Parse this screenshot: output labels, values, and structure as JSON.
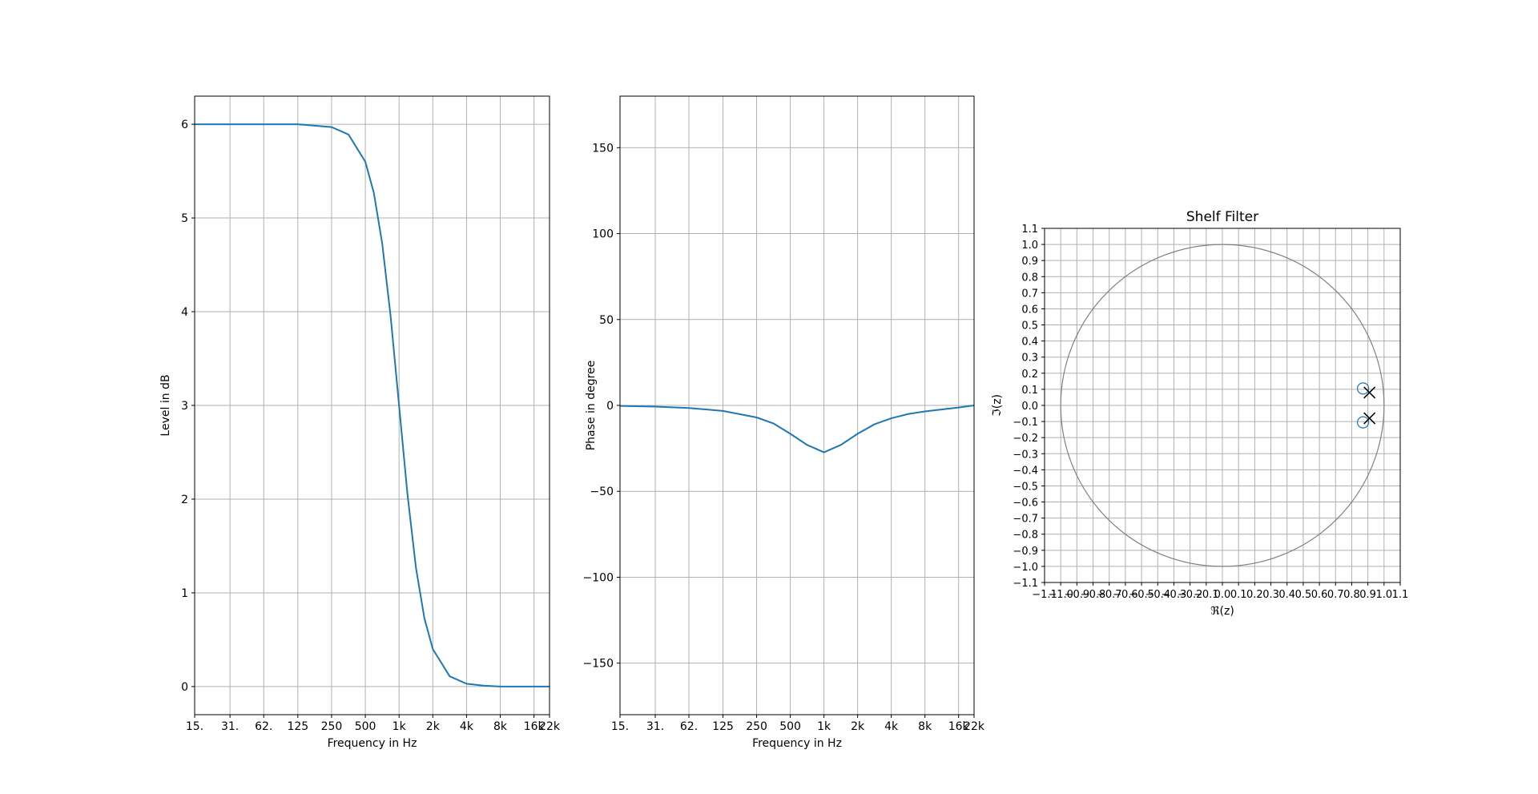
{
  "chart_data": [
    {
      "type": "line",
      "xlabel": "Frequency in Hz",
      "ylabel": "Level in dB",
      "xscale": "log",
      "grid": true,
      "color": "#1f77b4",
      "x": [
        15,
        31,
        62,
        125,
        250,
        354,
        500,
        595,
        707,
        841,
        1000,
        1189,
        1414,
        1682,
        2000,
        2828,
        4000,
        5657,
        8000,
        16000,
        22000
      ],
      "values": [
        6.0,
        6.0,
        6.0,
        6.0,
        5.97,
        5.89,
        5.6,
        5.27,
        4.73,
        3.95,
        3.0,
        2.05,
        1.27,
        0.73,
        0.4,
        0.11,
        0.03,
        0.01,
        0.0,
        0.0,
        0.0
      ],
      "xlim": [
        15,
        22000
      ],
      "ylim": [
        -0.3,
        6.3
      ],
      "xticks": [
        {
          "value": 15,
          "label": "15."
        },
        {
          "value": 31,
          "label": "31."
        },
        {
          "value": 62,
          "label": "62."
        },
        125,
        250,
        500,
        {
          "value": 1000,
          "label": "1k"
        },
        {
          "value": 2000,
          "label": "2k"
        },
        {
          "value": 4000,
          "label": "4k"
        },
        {
          "value": 8000,
          "label": "8k"
        },
        {
          "value": 16000,
          "label": "16k"
        },
        {
          "value": 22000,
          "label": "22k"
        }
      ],
      "yticks": [
        0,
        1,
        2,
        3,
        4,
        5,
        6
      ]
    },
    {
      "type": "line",
      "xlabel": "Frequency in Hz",
      "ylabel": "Phase in degree",
      "xscale": "log",
      "grid": true,
      "color": "#1f77b4",
      "x": [
        15,
        31,
        62,
        125,
        250,
        354,
        500,
        707,
        1000,
        1414,
        2000,
        2828,
        4000,
        5657,
        8000,
        16000,
        22000
      ],
      "values": [
        -0.3,
        -0.7,
        -1.5,
        -3.2,
        -7,
        -10.5,
        -16.5,
        -23,
        -27.3,
        -23,
        -16.5,
        -11,
        -7.5,
        -5,
        -3.5,
        -1.2,
        0
      ],
      "xlim": [
        15,
        22000
      ],
      "ylim": [
        -180,
        180
      ],
      "xticks": [
        {
          "value": 15,
          "label": "15."
        },
        {
          "value": 31,
          "label": "31."
        },
        {
          "value": 62,
          "label": "62."
        },
        125,
        250,
        500,
        {
          "value": 1000,
          "label": "1k"
        },
        {
          "value": 2000,
          "label": "2k"
        },
        {
          "value": 4000,
          "label": "4k"
        },
        {
          "value": 8000,
          "label": "8k"
        },
        {
          "value": 16000,
          "label": "16k"
        },
        {
          "value": 22000,
          "label": "22k"
        }
      ],
      "yticks": [
        {
          "value": -150,
          "label": "−150"
        },
        {
          "value": -100,
          "label": "−100"
        },
        {
          "value": -50,
          "label": "−50"
        },
        0,
        50,
        100,
        150
      ]
    },
    {
      "type": "scatter",
      "title": "Shelf Filter",
      "xlabel": "ℜ(z)",
      "ylabel": "ℑ(z)",
      "grid": true,
      "series": [
        {
          "marker": "circle",
          "color": "#1f77b4",
          "x": [
            0.87,
            0.87
          ],
          "y": [
            0.105,
            -0.105
          ]
        },
        {
          "marker": "cross",
          "color": "#000000",
          "x": [
            0.91,
            0.91
          ],
          "y": [
            0.08,
            -0.08
          ]
        }
      ],
      "xlim": [
        -1.1,
        1.1
      ],
      "ylim": [
        -1.1,
        1.1
      ],
      "xticks": [
        {
          "value": -1.1,
          "label": "−1.1"
        },
        {
          "value": -1.0,
          "label": "−1.0"
        },
        {
          "value": -0.9,
          "label": "−0.9"
        },
        {
          "value": -0.8,
          "label": "−0.8"
        },
        {
          "value": -0.7,
          "label": "−0.7"
        },
        {
          "value": -0.6,
          "label": "−0.6"
        },
        {
          "value": -0.5,
          "label": "−0.5"
        },
        {
          "value": -0.4,
          "label": "−0.4"
        },
        {
          "value": -0.3,
          "label": "−0.3"
        },
        {
          "value": -0.2,
          "label": "−0.2"
        },
        {
          "value": -0.1,
          "label": "−0.1"
        },
        {
          "value": 0,
          "label": "0.0"
        },
        0.1,
        0.2,
        0.3,
        0.4,
        0.5,
        0.6,
        0.7,
        0.8,
        0.9,
        {
          "value": 1,
          "label": "1.0"
        },
        1.1
      ],
      "yticks": [
        {
          "value": -1.1,
          "label": "−1.1"
        },
        {
          "value": -1.0,
          "label": "−1.0"
        },
        {
          "value": -0.9,
          "label": "−0.9"
        },
        {
          "value": -0.8,
          "label": "−0.8"
        },
        {
          "value": -0.7,
          "label": "−0.7"
        },
        {
          "value": -0.6,
          "label": "−0.6"
        },
        {
          "value": -0.5,
          "label": "−0.5"
        },
        {
          "value": -0.4,
          "label": "−0.4"
        },
        {
          "value": -0.3,
          "label": "−0.3"
        },
        {
          "value": -0.2,
          "label": "−0.2"
        },
        {
          "value": -0.1,
          "label": "−0.1"
        },
        {
          "value": 0,
          "label": "0.0"
        },
        0.1,
        0.2,
        0.3,
        0.4,
        0.5,
        0.6,
        0.7,
        0.8,
        0.9,
        {
          "value": 1,
          "label": "1.0"
        },
        1.1
      ]
    }
  ]
}
